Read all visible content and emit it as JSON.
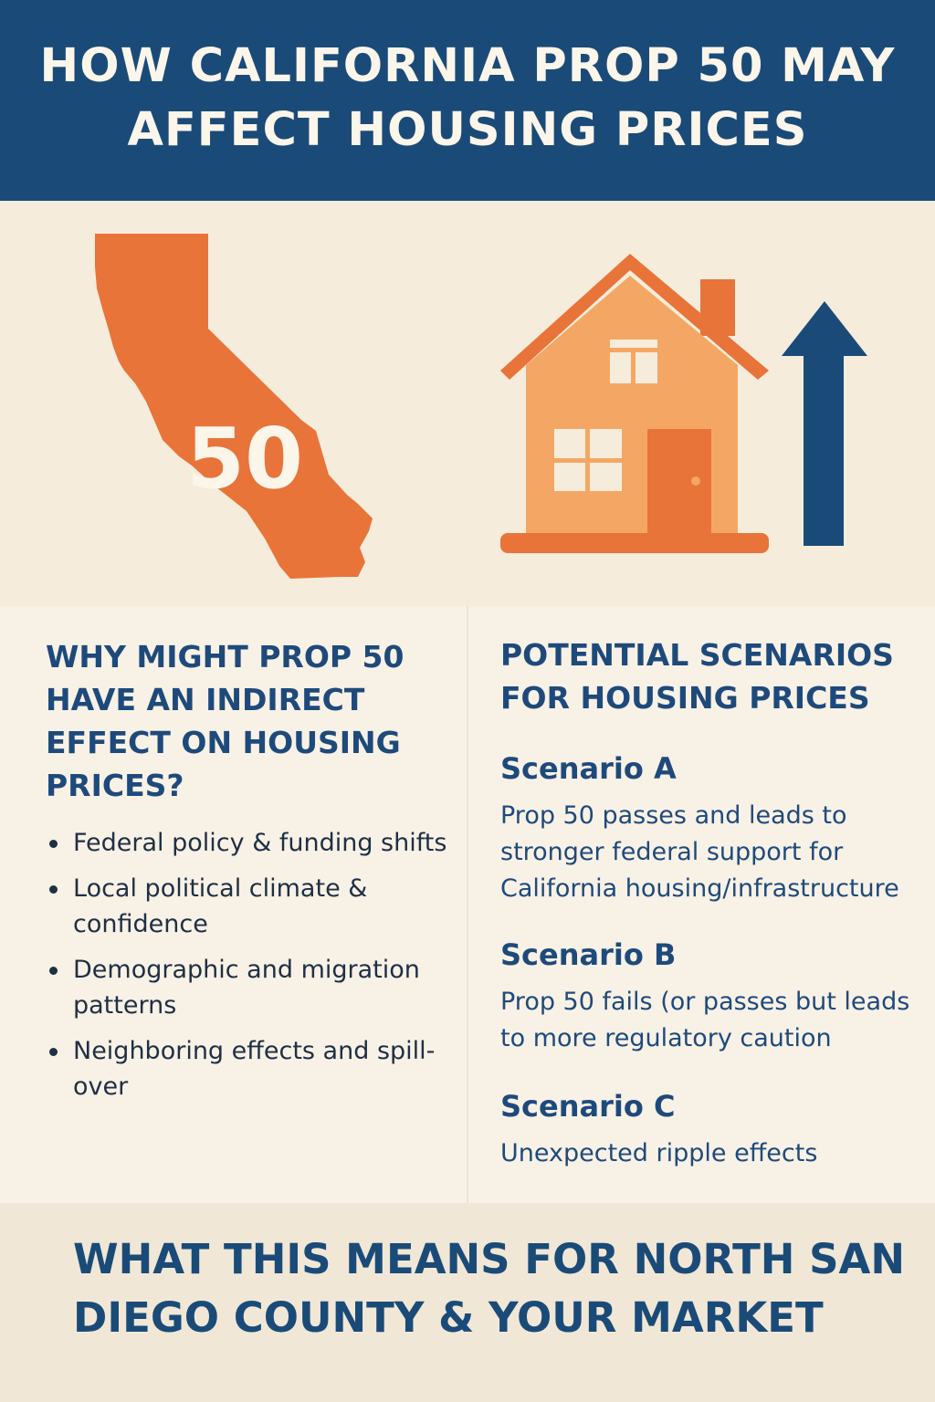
{
  "header": {
    "title": "HOW CALIFORNIA PROP 50 MAY AFFECT HOUSING PRICES"
  },
  "hero": {
    "map_number": "50",
    "icons": [
      "california-map-icon",
      "house-icon",
      "up-arrow-icon"
    ]
  },
  "left": {
    "title": "WHY MIGHT PROP 50 HAVE AN INDIRECT EFFECT ON HOUSING PRICES?",
    "bullets": [
      "Federal policy & funding shifts",
      "Local political climate & confidence",
      "Demographic and migration patterns",
      "Neighboring effects and spill-over"
    ]
  },
  "right": {
    "title": "POTENTIAL SCENARIOS FOR HOUSING PRICES",
    "scenarios": [
      {
        "title": "Scenario A",
        "text": "Prop 50 passes and leads to stronger federal support for California housing/infrastructure"
      },
      {
        "title": "Scenario B",
        "text": "Prop 50 fails (or passes but leads to more regulatory caution"
      },
      {
        "title": "Scenario C",
        "text": "Unexpected ripple effects"
      }
    ]
  },
  "footer": {
    "title": "WHAT THIS MEANS FOR NORTH SAN DIEGO COUNTY & YOUR MARKET"
  },
  "colors": {
    "navy": "#1a4b78",
    "orange": "#e8743a",
    "light_orange": "#f4a765",
    "cream": "#f7efe2"
  }
}
